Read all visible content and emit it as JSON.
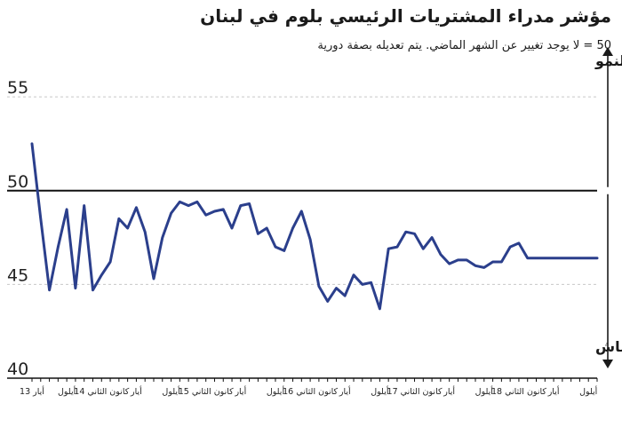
{
  "header": {
    "title": "مؤشر مدراء المشتريات الرئيسي بلوم في لبنان",
    "subtitle": "50 = لا يوجد تغيير عن الشهر الماضي. يتم تعديله بصفة دورية"
  },
  "chart_data": {
    "type": "line",
    "title": "مؤشر مدراء المشتريات الرئيسي بلوم في لبنان",
    "subtitle": "50 = لا يوجد تغيير عن الشهر الماضي. يتم تعديله بصفة دورية",
    "ylim": [
      40,
      56
    ],
    "yticks": [
      40,
      45,
      50,
      55
    ],
    "reference_line": 50,
    "grid": "horizontal-dashed",
    "annotations": {
      "growth": "معدل الزيادة في النمو",
      "contraction": "معدل الزيادة في الانكماش"
    },
    "x_tick_labels": [
      "أيار 13",
      "أيلول",
      "كانون الثاني 14",
      "أيار",
      "أيلول",
      "كانون الثاني 15",
      "أيار",
      "أيلول",
      "كانون الثاني 16",
      "أيار",
      "أيلول",
      "كانون الثاني 17",
      "أيار",
      "أيلول",
      "كانون الثاني 18",
      "أيار",
      "أيلول"
    ],
    "x": [
      "2013-05",
      "2013-06",
      "2013-07",
      "2013-08",
      "2013-09",
      "2013-10",
      "2013-11",
      "2013-12",
      "2014-01",
      "2014-02",
      "2014-03",
      "2014-04",
      "2014-05",
      "2014-06",
      "2014-07",
      "2014-08",
      "2014-09",
      "2014-10",
      "2014-11",
      "2014-12",
      "2015-01",
      "2015-02",
      "2015-03",
      "2015-04",
      "2015-05",
      "2015-06",
      "2015-07",
      "2015-08",
      "2015-09",
      "2015-10",
      "2015-11",
      "2015-12",
      "2016-01",
      "2016-02",
      "2016-03",
      "2016-04",
      "2016-05",
      "2016-06",
      "2016-07",
      "2016-08",
      "2016-09",
      "2016-10",
      "2016-11",
      "2016-12",
      "2017-01",
      "2017-02",
      "2017-03",
      "2017-04",
      "2017-05",
      "2017-06",
      "2017-07",
      "2017-08",
      "2017-09",
      "2017-10",
      "2017-11",
      "2017-12",
      "2018-01",
      "2018-02",
      "2018-03",
      "2018-04",
      "2018-05",
      "2018-06",
      "2018-07",
      "2018-08",
      "2018-09",
      "2018-10"
    ],
    "series": [
      {
        "color": "#2b3f8c",
        "values": [
          52.5,
          48.5,
          44.7,
          47.0,
          49.0,
          44.8,
          49.2,
          44.7,
          45.5,
          46.2,
          48.5,
          48.0,
          49.1,
          47.8,
          45.3,
          47.5,
          48.8,
          49.4,
          49.2,
          49.4,
          48.7,
          48.9,
          49.0,
          48.0,
          49.2,
          49.3,
          47.7,
          48.0,
          47.0,
          46.8,
          48.0,
          48.9,
          47.4,
          44.9,
          44.1,
          44.8,
          44.4,
          45.5,
          45.0,
          45.1,
          43.7,
          46.9,
          47.0,
          47.8,
          47.7,
          46.9,
          47.5,
          46.6,
          46.1,
          46.3,
          46.3,
          46.0,
          45.9,
          46.2,
          46.2,
          47.0,
          47.2,
          46.4,
          46.4,
          46.4,
          46.4,
          46.4,
          46.4,
          46.4,
          46.4,
          46.4
        ]
      }
    ]
  }
}
